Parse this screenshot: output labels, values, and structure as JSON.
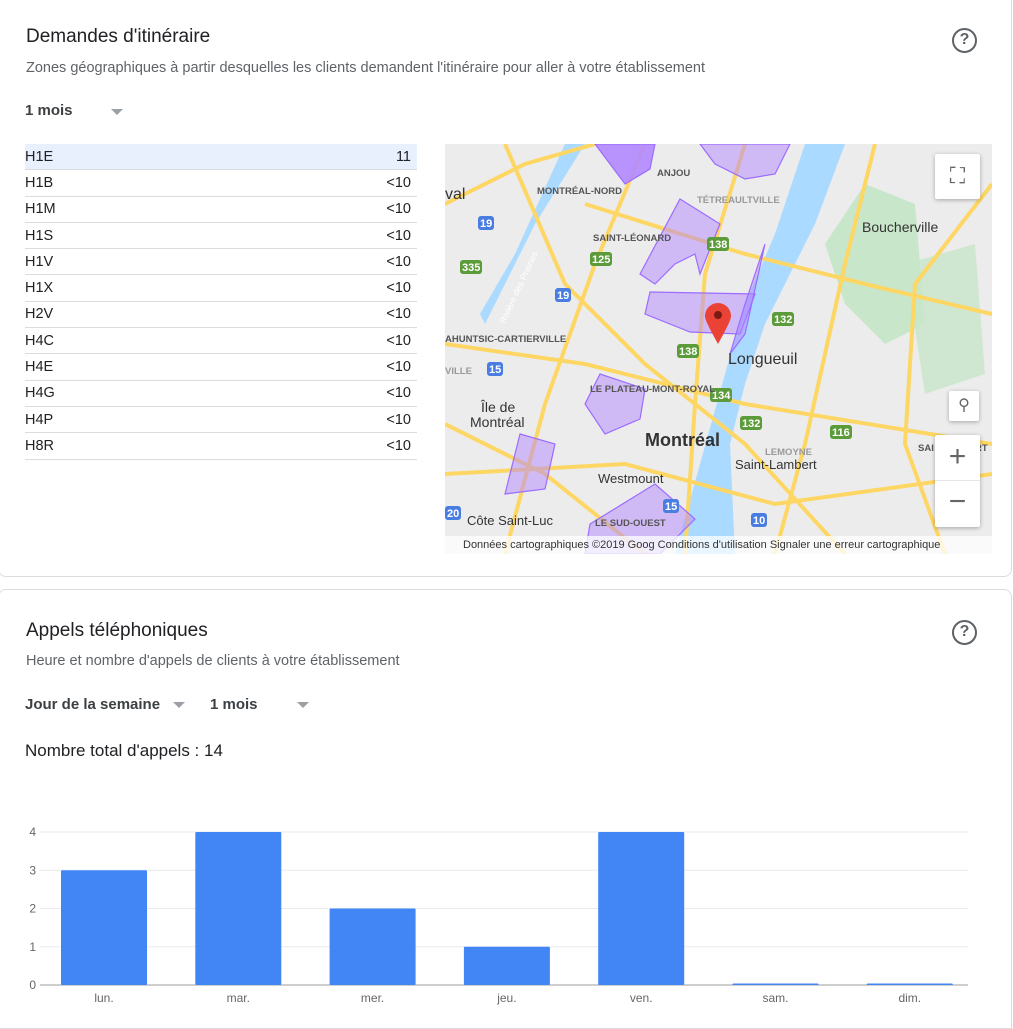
{
  "directions": {
    "title": "Demandes d'itinéraire",
    "subtitle": "Zones géographiques à partir desquelles les clients demandent l'itinéraire pour aller à votre établissement",
    "period": "1 mois",
    "rows": [
      {
        "zone": "H1E",
        "value": "11"
      },
      {
        "zone": "H1B",
        "value": "<10"
      },
      {
        "zone": "H1M",
        "value": "<10"
      },
      {
        "zone": "H1S",
        "value": "<10"
      },
      {
        "zone": "H1V",
        "value": "<10"
      },
      {
        "zone": "H1X",
        "value": "<10"
      },
      {
        "zone": "H2V",
        "value": "<10"
      },
      {
        "zone": "H4C",
        "value": "<10"
      },
      {
        "zone": "H4E",
        "value": "<10"
      },
      {
        "zone": "H4G",
        "value": "<10"
      },
      {
        "zone": "H4P",
        "value": "<10"
      },
      {
        "zone": "H8R",
        "value": "<10"
      }
    ],
    "map": {
      "labels": {
        "anjou": "ANJOU",
        "mnord": "MONTRÉAL-NORD",
        "tetreault": "TÉTREAULTVILLE",
        "boucherville": "Boucherville",
        "val": "val",
        "stleonard": "SAINT-LÉONARD",
        "ahuntsic": "AHUNTSIC-CARTIERVILLE",
        "ville": "VILLE",
        "longueuil": "Longueuil",
        "plateau": "LE PLATEAU-MONT-ROYAL",
        "ile": "Île de",
        "ile2": "Montréal",
        "montreal": "Montréal",
        "lemoyne": "LEMOYNE",
        "stlambert": "Saint-Lambert",
        "westmount": "Westmount",
        "cote": "Côte Saint-Luc",
        "sudouest": "LE SUD-OUEST",
        "riviere": "Rivière des Prairies",
        "sai": "SAI",
        "rt": "RT"
      },
      "shields": [
        "19",
        "335",
        "125",
        "19",
        "138",
        "138",
        "132",
        "15",
        "134",
        "132",
        "116",
        "15",
        "10",
        "20"
      ],
      "attribution": "Données cartographiques ©2019 Goog",
      "terms": "Conditions d'utilisation",
      "report": "Signaler une erreur cartographique",
      "zoom_in": "+",
      "zoom_out": "−",
      "colors": {
        "zone": "#b388ff",
        "water": "#aadaff",
        "road": "#fdd663",
        "pin": "#ea4335",
        "park": "#c8e6c9"
      }
    },
    "help_icon": "?"
  },
  "calls": {
    "title": "Appels téléphoniques",
    "subtitle": "Heure et nombre d'appels de clients à votre établissement",
    "grouping": "Jour de la semaine",
    "period": "1 mois",
    "total": "Nombre total d'appels : 14",
    "help_icon": "?"
  },
  "chart_data": {
    "type": "bar",
    "categories": [
      "lun.",
      "mar.",
      "mer.",
      "jeu.",
      "ven.",
      "sam.",
      "dim."
    ],
    "values": [
      3,
      4,
      2,
      1,
      4,
      0,
      0
    ],
    "yticks": [
      "0",
      "1",
      "2",
      "3",
      "4"
    ],
    "ylim": [
      0,
      4
    ],
    "grid": true,
    "color": "#4285f4"
  }
}
